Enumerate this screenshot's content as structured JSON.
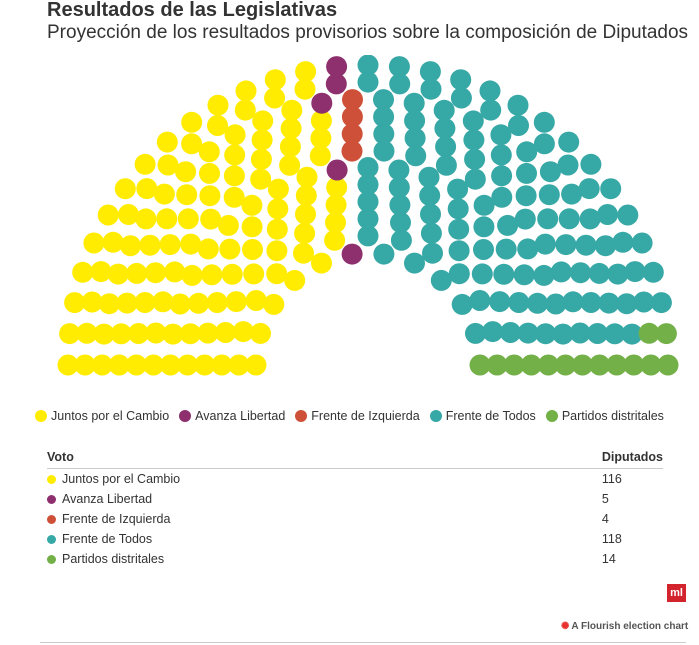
{
  "title": "Resultados de las Legislativas",
  "subtitle": "Proyección de los resultados provisorios sobre la composición de Diputados",
  "chart_data": {
    "type": "parliament",
    "title": "Resultados de las Legislativas",
    "subtitle": "Proyección de los resultados provisorios sobre la composición de Diputados",
    "total_seats": 257,
    "series": [
      {
        "name": "Juntos por el Cambio",
        "seats": 116,
        "color": "#ffec00"
      },
      {
        "name": "Avanza Libertad",
        "seats": 5,
        "color": "#8e2f6e"
      },
      {
        "name": "Frente de Izquierda",
        "seats": 4,
        "color": "#cf5038"
      },
      {
        "name": "Frente de Todos",
        "seats": 118,
        "color": "#36a8a6"
      },
      {
        "name": "Partidos distritales",
        "seats": 14,
        "color": "#73b148"
      }
    ],
    "legend_position": "bottom-center"
  },
  "table": {
    "headers": {
      "party": "Voto",
      "seats": "Diputados"
    },
    "rows": [
      {
        "party": "Juntos por el Cambio",
        "seats": "116",
        "color": "#ffec00"
      },
      {
        "party": "Avanza Libertad",
        "seats": "5",
        "color": "#8e2f6e"
      },
      {
        "party": "Frente de Izquierda",
        "seats": "4",
        "color": "#cf5038"
      },
      {
        "party": "Frente de Todos",
        "seats": "118",
        "color": "#36a8a6"
      },
      {
        "party": "Partidos distritales",
        "seats": "14",
        "color": "#73b148"
      }
    ]
  },
  "logo_text": "ml",
  "credit": "A Flourish election chart"
}
